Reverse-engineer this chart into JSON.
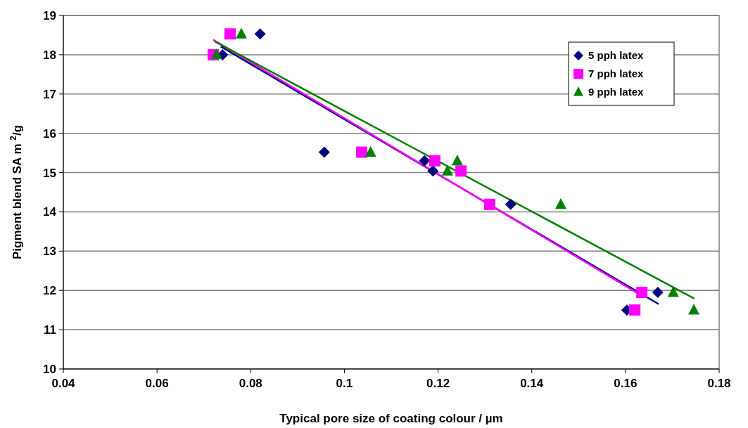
{
  "chart_data": {
    "type": "scatter",
    "xlabel": "Typical pore size of coating colour / µm",
    "ylabel": "Pigment blend SA m $^{2}$/g",
    "xlim": [
      0.04,
      0.18
    ],
    "xticks": [
      0.04,
      0.06,
      0.08,
      0.1,
      0.12,
      0.14,
      0.16,
      0.18
    ],
    "ylim": [
      10,
      19
    ],
    "yticks": [
      10,
      11,
      12,
      13,
      14,
      15,
      16,
      17,
      18,
      19
    ],
    "grid": "y",
    "legend": "top right",
    "series": [
      {
        "name": "5 pph latex",
        "color": "#000080",
        "marker": "diamond",
        "x": [
          0.074,
          0.082,
          0.0957,
          0.1171,
          0.1189,
          0.1355,
          0.1603,
          0.1669
        ],
        "values": [
          18,
          18.53,
          15.52,
          15.3,
          15.04,
          14.19,
          11.5,
          11.95
        ]
      },
      {
        "name": "7 pph latex",
        "color": "#ff00ff",
        "marker": "square",
        "x": [
          0.072,
          0.0756,
          0.1037,
          0.1193,
          0.1249,
          0.131,
          0.162,
          0.1635
        ],
        "values": [
          18,
          18.53,
          15.52,
          15.3,
          15.04,
          14.19,
          11.5,
          11.95
        ]
      },
      {
        "name": "9 pph latex",
        "color": "#008000",
        "marker": "triangle",
        "x": [
          0.0727,
          0.078,
          0.1056,
          0.1241,
          0.122,
          0.1462,
          0.1702,
          0.1746
        ],
        "values": [
          18,
          18.53,
          15.52,
          15.3,
          15.04,
          14.19,
          11.95,
          11.5
        ]
      },
      {
        "type": "line",
        "color": "#000080",
        "x": [
          0.0736,
          0.1671
        ],
        "values": [
          18.21,
          11.65
        ]
      },
      {
        "type": "line",
        "color": "#ff00ff",
        "x": [
          0.072,
          0.1627
        ],
        "values": [
          18.38,
          11.92
        ]
      },
      {
        "type": "line",
        "color": "#008000",
        "x": [
          0.0723,
          0.1747
        ],
        "values": [
          18.34,
          11.79
        ]
      }
    ]
  }
}
